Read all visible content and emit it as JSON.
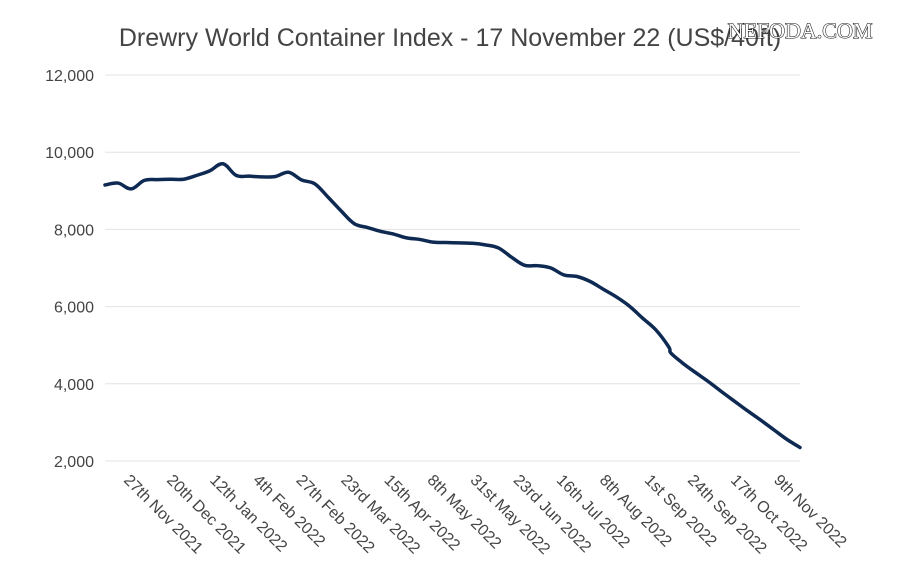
{
  "chart_data": {
    "type": "line",
    "title": "Drewry World Container Index - 17 November 22 (US$/40ft)",
    "watermark": "NEFODA.COM",
    "xlabel": "",
    "ylabel": "",
    "ylim": [
      2000,
      12000
    ],
    "yticks": [
      {
        "value": 2000,
        "label": "2,000"
      },
      {
        "value": 4000,
        "label": "4,000"
      },
      {
        "value": 6000,
        "label": "6,000"
      },
      {
        "value": 8000,
        "label": "8,000"
      },
      {
        "value": 10000,
        "label": "10,000"
      },
      {
        "value": 12000,
        "label": "12,000"
      }
    ],
    "xlim": [
      "2021-11-11",
      "2022-11-17"
    ],
    "xticks": [
      {
        "date": "2021-11-27",
        "label": "27th Nov 2021"
      },
      {
        "date": "2021-12-20",
        "label": "20th Dec 2021"
      },
      {
        "date": "2022-01-12",
        "label": "12th Jan 2022"
      },
      {
        "date": "2022-02-04",
        "label": "4th Feb 2022"
      },
      {
        "date": "2022-02-27",
        "label": "27th Feb 2022"
      },
      {
        "date": "2022-03-23",
        "label": "23rd Mar 2022"
      },
      {
        "date": "2022-04-15",
        "label": "15th Apr 2022"
      },
      {
        "date": "2022-05-08",
        "label": "8th May 2022"
      },
      {
        "date": "2022-05-31",
        "label": "31st May 2022"
      },
      {
        "date": "2022-06-23",
        "label": "23rd Jun 2022"
      },
      {
        "date": "2022-07-16",
        "label": "16th Jul 2022"
      },
      {
        "date": "2022-08-08",
        "label": "8th Aug 2022"
      },
      {
        "date": "2022-09-01",
        "label": "1st Sep 2022"
      },
      {
        "date": "2022-09-24",
        "label": "24th Sep 2022"
      },
      {
        "date": "2022-10-17",
        "label": "17th Oct 2022"
      },
      {
        "date": "2022-11-09",
        "label": "9th Nov 2022"
      }
    ],
    "grid": true,
    "series": [
      {
        "color": "#0e2a52",
        "points": [
          {
            "x": "2021-11-11",
            "y": 9150
          },
          {
            "x": "2021-11-18",
            "y": 9200
          },
          {
            "x": "2021-11-25",
            "y": 9050
          },
          {
            "x": "2021-12-02",
            "y": 9270
          },
          {
            "x": "2021-12-09",
            "y": 9290
          },
          {
            "x": "2021-12-16",
            "y": 9300
          },
          {
            "x": "2021-12-23",
            "y": 9300
          },
          {
            "x": "2021-12-30",
            "y": 9400
          },
          {
            "x": "2022-01-06",
            "y": 9520
          },
          {
            "x": "2022-01-13",
            "y": 9700
          },
          {
            "x": "2022-01-20",
            "y": 9400
          },
          {
            "x": "2022-01-27",
            "y": 9380
          },
          {
            "x": "2022-02-03",
            "y": 9360
          },
          {
            "x": "2022-02-10",
            "y": 9370
          },
          {
            "x": "2022-02-17",
            "y": 9480
          },
          {
            "x": "2022-02-24",
            "y": 9280
          },
          {
            "x": "2022-03-03",
            "y": 9180
          },
          {
            "x": "2022-03-10",
            "y": 8840
          },
          {
            "x": "2022-03-17",
            "y": 8480
          },
          {
            "x": "2022-03-24",
            "y": 8150
          },
          {
            "x": "2022-03-31",
            "y": 8050
          },
          {
            "x": "2022-04-07",
            "y": 7950
          },
          {
            "x": "2022-04-14",
            "y": 7880
          },
          {
            "x": "2022-04-21",
            "y": 7780
          },
          {
            "x": "2022-04-28",
            "y": 7740
          },
          {
            "x": "2022-05-05",
            "y": 7670
          },
          {
            "x": "2022-05-12",
            "y": 7660
          },
          {
            "x": "2022-05-19",
            "y": 7650
          },
          {
            "x": "2022-05-26",
            "y": 7640
          },
          {
            "x": "2022-06-02",
            "y": 7600
          },
          {
            "x": "2022-06-09",
            "y": 7520
          },
          {
            "x": "2022-06-16",
            "y": 7280
          },
          {
            "x": "2022-06-23",
            "y": 7070
          },
          {
            "x": "2022-06-30",
            "y": 7060
          },
          {
            "x": "2022-07-07",
            "y": 7000
          },
          {
            "x": "2022-07-14",
            "y": 6820
          },
          {
            "x": "2022-07-21",
            "y": 6780
          },
          {
            "x": "2022-07-28",
            "y": 6650
          },
          {
            "x": "2022-08-04",
            "y": 6450
          },
          {
            "x": "2022-08-11",
            "y": 6250
          },
          {
            "x": "2022-08-18",
            "y": 6010
          },
          {
            "x": "2022-08-25",
            "y": 5700
          },
          {
            "x": "2022-09-01",
            "y": 5400
          },
          {
            "x": "2022-09-08",
            "y": 4950
          },
          {
            "x": "2022-09-09",
            "y": 4800
          },
          {
            "x": "2022-09-15",
            "y": 4550
          },
          {
            "x": "2022-09-22",
            "y": 4300
          },
          {
            "x": "2022-09-29",
            "y": 4060
          },
          {
            "x": "2022-10-06",
            "y": 3800
          },
          {
            "x": "2022-10-13",
            "y": 3550
          },
          {
            "x": "2022-10-20",
            "y": 3300
          },
          {
            "x": "2022-10-27",
            "y": 3060
          },
          {
            "x": "2022-11-03",
            "y": 2810
          },
          {
            "x": "2022-11-10",
            "y": 2560
          },
          {
            "x": "2022-11-17",
            "y": 2350
          }
        ]
      }
    ]
  }
}
